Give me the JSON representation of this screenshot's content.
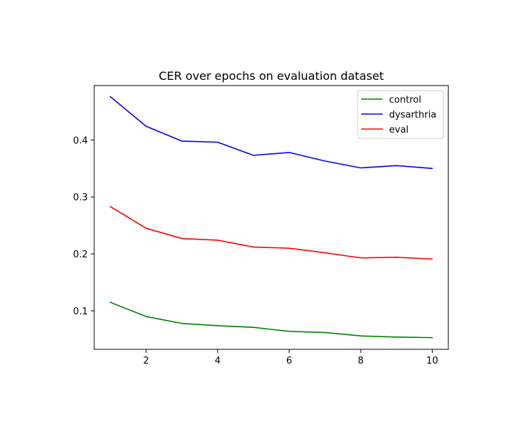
{
  "chart_data": {
    "type": "line",
    "title": "CER over epochs on evaluation dataset",
    "xlabel": "",
    "ylabel": "",
    "x": [
      1,
      2,
      3,
      4,
      5,
      6,
      7,
      8,
      9,
      10
    ],
    "xlim": [
      0.55,
      10.45
    ],
    "ylim": [
      0.0325,
      0.4955
    ],
    "xticks": [
      2,
      4,
      6,
      8,
      10
    ],
    "yticks": [
      0.1,
      0.2,
      0.3,
      0.4
    ],
    "grid": false,
    "legend_position": "top-right",
    "series": [
      {
        "name": "control",
        "color": "#008000",
        "values": [
          0.115,
          0.09,
          0.078,
          0.074,
          0.071,
          0.064,
          0.062,
          0.056,
          0.054,
          0.053
        ]
      },
      {
        "name": "dysarthria",
        "color": "#0000ff",
        "values": [
          0.476,
          0.424,
          0.398,
          0.396,
          0.373,
          0.378,
          0.363,
          0.351,
          0.355,
          0.35
        ]
      },
      {
        "name": "eval",
        "color": "#ff0000",
        "values": [
          0.283,
          0.245,
          0.227,
          0.224,
          0.212,
          0.21,
          0.202,
          0.193,
          0.194,
          0.191
        ]
      }
    ]
  }
}
